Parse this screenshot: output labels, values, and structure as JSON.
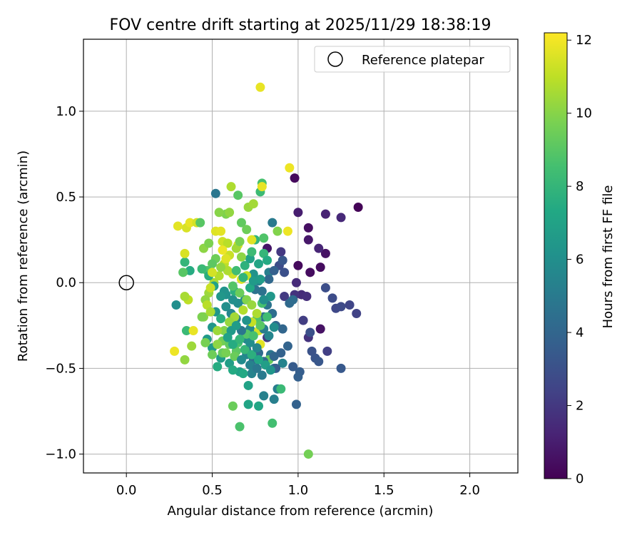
{
  "chart_data": {
    "type": "scatter",
    "title": "FOV centre drift starting at 2025/11/29 18:38:19",
    "xlabel": "Angular distance from reference (arcmin)",
    "ylabel": "Rotation from reference (arcmin)",
    "xlim": [
      -0.25,
      2.28
    ],
    "ylim": [
      -1.11,
      1.42
    ],
    "xticks": [
      0.0,
      0.5,
      1.0,
      1.5,
      2.0
    ],
    "xtick_labels": [
      "0.0",
      "0.5",
      "1.0",
      "1.5",
      "2.0"
    ],
    "yticks": [
      -1.0,
      -0.5,
      0.0,
      0.5,
      1.0
    ],
    "ytick_labels": [
      "−1.0",
      "−0.5",
      "0.0",
      "0.5",
      "1.0"
    ],
    "grid": true,
    "legend": {
      "position": "top-right",
      "entries": [
        "Reference platepar"
      ]
    },
    "reference_point": {
      "x": 0.0,
      "y": 0.0,
      "label": "Reference platepar"
    },
    "colorbar": {
      "label": "Hours from first FF file",
      "range": [
        0,
        12.2
      ],
      "ticks": [
        0,
        2,
        4,
        6,
        8,
        10,
        12
      ],
      "tick_labels": [
        "0",
        "2",
        "4",
        "6",
        "8",
        "10",
        "12"
      ],
      "colormap": "viridis"
    },
    "points": [
      [
        1.35,
        0.44,
        0.1
      ],
      [
        0.98,
        0.61,
        0.3
      ],
      [
        1.0,
        0.1,
        0.3
      ],
      [
        1.13,
        0.09,
        0.4
      ],
      [
        1.07,
        0.06,
        0.4
      ],
      [
        1.06,
        0.32,
        0.5
      ],
      [
        1.16,
        0.17,
        0.6
      ],
      [
        1.13,
        -0.27,
        0.6
      ],
      [
        0.82,
        0.2,
        0.7
      ],
      [
        1.06,
        0.25,
        0.8
      ],
      [
        1.0,
        0.41,
        1.0
      ],
      [
        1.16,
        0.4,
        1.2
      ],
      [
        1.25,
        0.38,
        1.4
      ],
      [
        1.12,
        0.2,
        1.3
      ],
      [
        0.99,
        0.0,
        1.5
      ],
      [
        1.02,
        -0.07,
        1.5
      ],
      [
        1.05,
        -0.08,
        1.6
      ],
      [
        1.06,
        -0.32,
        1.8
      ],
      [
        0.98,
        -0.07,
        1.8
      ],
      [
        0.9,
        0.18,
        2.0
      ],
      [
        0.92,
        -0.08,
        2.1
      ],
      [
        1.03,
        -0.22,
        2.2
      ],
      [
        1.17,
        -0.4,
        2.3
      ],
      [
        1.34,
        -0.18,
        2.4
      ],
      [
        1.3,
        -0.13,
        2.5
      ],
      [
        1.22,
        -0.15,
        2.6
      ],
      [
        1.25,
        -0.14,
        2.7
      ],
      [
        1.2,
        -0.09,
        2.8
      ],
      [
        1.16,
        -0.03,
        2.9
      ],
      [
        1.07,
        -0.29,
        3.0
      ],
      [
        1.08,
        -0.4,
        3.1
      ],
      [
        1.1,
        -0.44,
        3.2
      ],
      [
        1.12,
        -0.46,
        3.3
      ],
      [
        1.25,
        -0.5,
        3.4
      ],
      [
        0.97,
        -0.49,
        3.5
      ],
      [
        1.01,
        -0.52,
        3.6
      ],
      [
        1.0,
        -0.55,
        3.7
      ],
      [
        0.99,
        -0.71,
        3.8
      ],
      [
        0.94,
        -0.37,
        3.9
      ],
      [
        0.91,
        -0.27,
        4.0
      ],
      [
        0.87,
        -0.25,
        4.1
      ],
      [
        0.95,
        -0.12,
        4.2
      ],
      [
        0.97,
        -0.1,
        4.3
      ],
      [
        0.85,
        -0.18,
        4.4
      ],
      [
        0.8,
        -0.2,
        4.5
      ],
      [
        0.75,
        -0.04,
        4.6
      ],
      [
        0.82,
        -0.13,
        4.7
      ],
      [
        0.84,
        -0.42,
        4.8
      ],
      [
        0.86,
        -0.5,
        4.9
      ],
      [
        0.79,
        -0.54,
        5.0
      ],
      [
        0.88,
        -0.62,
        5.1
      ],
      [
        0.86,
        -0.68,
        5.2
      ],
      [
        0.8,
        -0.66,
        5.3
      ],
      [
        0.73,
        -0.53,
        5.4
      ],
      [
        0.7,
        -0.42,
        5.5
      ],
      [
        0.7,
        -0.33,
        5.6
      ],
      [
        0.72,
        -0.27,
        5.7
      ],
      [
        0.69,
        -0.1,
        5.8
      ],
      [
        0.65,
        -0.12,
        5.9
      ],
      [
        0.62,
        -0.1,
        6.0
      ],
      [
        0.58,
        -0.07,
        6.1
      ],
      [
        0.57,
        -0.05,
        6.2
      ],
      [
        0.52,
        -0.17,
        6.3
      ],
      [
        0.5,
        -0.26,
        6.4
      ],
      [
        0.47,
        -0.33,
        6.5
      ],
      [
        0.5,
        -0.38,
        6.6
      ],
      [
        0.55,
        -0.44,
        6.7
      ],
      [
        0.6,
        -0.47,
        6.8
      ],
      [
        0.66,
        -0.52,
        6.9
      ],
      [
        0.71,
        -0.6,
        7.0
      ],
      [
        0.71,
        -0.71,
        7.1
      ],
      [
        0.77,
        -0.72,
        7.2
      ],
      [
        0.68,
        -0.53,
        7.3
      ],
      [
        0.62,
        -0.51,
        7.4
      ],
      [
        0.53,
        -0.49,
        7.5
      ],
      [
        0.55,
        -0.21,
        7.6
      ],
      [
        0.63,
        -0.05,
        7.7
      ],
      [
        0.69,
        0.1,
        7.8
      ],
      [
        0.75,
        0.25,
        7.9
      ],
      [
        0.8,
        0.17,
        8.0
      ],
      [
        0.85,
        0.35,
        5.0
      ],
      [
        0.52,
        0.52,
        4.8
      ],
      [
        0.74,
        0.05,
        6.2
      ],
      [
        0.72,
        0.14,
        7.0
      ],
      [
        0.77,
        0.01,
        5.5
      ],
      [
        0.83,
        0.06,
        5.2
      ],
      [
        0.91,
        -0.47,
        5.4
      ],
      [
        0.82,
        -0.32,
        2.0
      ],
      [
        0.77,
        -0.41,
        4.2
      ],
      [
        0.89,
        0.1,
        2.8
      ],
      [
        0.78,
        0.53,
        8.3
      ],
      [
        0.79,
        0.58,
        8.6
      ],
      [
        0.65,
        0.51,
        9.0
      ],
      [
        0.67,
        0.35,
        9.2
      ],
      [
        0.7,
        0.31,
        9.5
      ],
      [
        0.58,
        0.4,
        9.8
      ],
      [
        0.54,
        0.41,
        10.0
      ],
      [
        0.6,
        0.41,
        10.2
      ],
      [
        0.71,
        0.44,
        10.3
      ],
      [
        0.74,
        0.46,
        10.5
      ],
      [
        0.61,
        0.56,
        10.7
      ],
      [
        0.79,
        0.56,
        11.8
      ],
      [
        0.95,
        0.67,
        11.9
      ],
      [
        0.78,
        1.14,
        11.8
      ],
      [
        0.94,
        0.3,
        11.9
      ],
      [
        0.88,
        0.3,
        9.9
      ],
      [
        0.73,
        0.25,
        11.6
      ],
      [
        0.65,
        0.22,
        11.5
      ],
      [
        0.6,
        0.16,
        11.2
      ],
      [
        0.57,
        0.11,
        11.0
      ],
      [
        0.54,
        0.04,
        10.8
      ],
      [
        0.51,
        0.0,
        10.6
      ],
      [
        0.48,
        -0.06,
        10.4
      ],
      [
        0.46,
        -0.1,
        10.2
      ],
      [
        0.45,
        -0.2,
        10.0
      ],
      [
        0.44,
        -0.2,
        9.8
      ],
      [
        0.46,
        -0.35,
        9.7
      ],
      [
        0.5,
        -0.42,
        9.5
      ],
      [
        0.56,
        -0.41,
        9.3
      ],
      [
        0.64,
        -0.4,
        9.1
      ],
      [
        0.7,
        -0.3,
        8.9
      ],
      [
        0.76,
        -0.21,
        8.8
      ],
      [
        0.79,
        -0.12,
        8.6
      ],
      [
        0.82,
        -0.2,
        8.4
      ],
      [
        0.9,
        -0.62,
        8.2
      ],
      [
        0.85,
        -0.82,
        8.5
      ],
      [
        0.66,
        -0.84,
        8.7
      ],
      [
        0.62,
        -0.72,
        9.4
      ],
      [
        1.06,
        -1.0,
        9.6
      ],
      [
        0.83,
        -0.45,
        9.3
      ],
      [
        0.35,
        -0.28,
        8.2
      ],
      [
        0.37,
        0.07,
        7.5
      ],
      [
        0.33,
        0.06,
        9.0
      ],
      [
        0.34,
        0.12,
        8.0
      ],
      [
        0.34,
        0.17,
        11.5
      ],
      [
        0.35,
        0.32,
        11.5
      ],
      [
        0.37,
        0.35,
        11.8
      ],
      [
        0.41,
        0.35,
        11.4
      ],
      [
        0.3,
        0.33,
        11.7
      ],
      [
        0.39,
        -0.28,
        11.8
      ],
      [
        0.36,
        -0.1,
        11.0
      ],
      [
        0.34,
        -0.08,
        10.6
      ],
      [
        0.38,
        -0.37,
        10.4
      ],
      [
        0.34,
        -0.45,
        10.2
      ],
      [
        0.28,
        -0.4,
        11.9
      ],
      [
        0.29,
        -0.13,
        6.0
      ],
      [
        0.43,
        0.35,
        9.0
      ],
      [
        0.45,
        0.2,
        10.1
      ],
      [
        0.48,
        0.23,
        9.8
      ],
      [
        0.52,
        0.3,
        11.6
      ],
      [
        0.55,
        0.3,
        11.7
      ],
      [
        0.56,
        0.24,
        11.3
      ],
      [
        0.59,
        0.23,
        10.9
      ],
      [
        0.64,
        0.2,
        10.5
      ],
      [
        0.67,
        0.15,
        10.1
      ],
      [
        0.7,
        0.04,
        11.1
      ],
      [
        0.67,
        0.02,
        11.6
      ],
      [
        0.62,
        0.05,
        11.3
      ],
      [
        0.59,
        0.07,
        10.7
      ],
      [
        0.55,
        0.09,
        10.2
      ],
      [
        0.52,
        0.14,
        9.5
      ],
      [
        0.5,
        0.11,
        9.1
      ],
      [
        0.47,
        0.07,
        8.8
      ],
      [
        0.44,
        0.08,
        8.2
      ],
      [
        0.48,
        0.04,
        7.6
      ],
      [
        0.51,
        -0.02,
        7.0
      ],
      [
        0.55,
        -0.08,
        6.4
      ],
      [
        0.58,
        -0.14,
        6.0
      ],
      [
        0.61,
        -0.18,
        5.6
      ],
      [
        0.64,
        -0.21,
        5.2
      ],
      [
        0.67,
        -0.28,
        4.8
      ],
      [
        0.7,
        -0.39,
        4.6
      ],
      [
        0.74,
        -0.45,
        4.4
      ],
      [
        0.8,
        -0.46,
        4.2
      ],
      [
        0.86,
        -0.43,
        4.0
      ],
      [
        0.9,
        -0.41,
        3.8
      ],
      [
        0.87,
        -0.5,
        3.6
      ],
      [
        0.78,
        -0.36,
        11.7
      ],
      [
        0.77,
        -0.28,
        11.4
      ],
      [
        0.73,
        -0.23,
        11.1
      ],
      [
        0.68,
        -0.16,
        10.8
      ],
      [
        0.63,
        -0.2,
        10.5
      ],
      [
        0.6,
        -0.23,
        10.3
      ],
      [
        0.57,
        -0.28,
        9.9
      ],
      [
        0.56,
        -0.34,
        9.6
      ],
      [
        0.6,
        -0.36,
        9.2
      ],
      [
        0.65,
        -0.35,
        8.6
      ],
      [
        0.69,
        -0.39,
        8.1
      ],
      [
        0.73,
        -0.42,
        7.7
      ],
      [
        0.77,
        -0.45,
        7.2
      ],
      [
        0.81,
        -0.48,
        6.8
      ],
      [
        0.84,
        -0.51,
        6.3
      ],
      [
        0.86,
        -0.26,
        5.9
      ],
      [
        0.83,
        -0.31,
        5.5
      ],
      [
        0.8,
        -0.27,
        5.1
      ],
      [
        0.79,
        -0.05,
        4.6
      ],
      [
        0.83,
        0.02,
        4.1
      ],
      [
        0.86,
        0.07,
        3.7
      ],
      [
        0.91,
        0.13,
        3.3
      ],
      [
        0.92,
        0.06,
        3.0
      ],
      [
        0.84,
        -0.08,
        6.4
      ],
      [
        0.78,
        0.02,
        6.7
      ],
      [
        0.72,
        -0.03,
        7.3
      ],
      [
        0.68,
        0.03,
        7.9
      ],
      [
        0.64,
        0.07,
        8.4
      ],
      [
        0.62,
        -0.02,
        8.9
      ],
      [
        0.66,
        -0.06,
        9.4
      ],
      [
        0.7,
        -0.1,
        9.9
      ],
      [
        0.73,
        -0.13,
        10.3
      ],
      [
        0.76,
        -0.18,
        10.7
      ],
      [
        0.56,
        0.19,
        11.9
      ],
      [
        0.58,
        0.14,
        11.6
      ],
      [
        0.5,
        0.06,
        11.4
      ],
      [
        0.49,
        -0.03,
        11.2
      ],
      [
        0.47,
        -0.13,
        10.9
      ],
      [
        0.49,
        -0.17,
        10.6
      ],
      [
        0.53,
        -0.28,
        10.4
      ],
      [
        0.53,
        -0.36,
        10.1
      ],
      [
        0.58,
        -0.41,
        9.7
      ],
      [
        0.63,
        -0.43,
        9.4
      ],
      [
        0.67,
        -0.45,
        5.8
      ],
      [
        0.72,
        -0.48,
        5.3
      ],
      [
        0.76,
        -0.5,
        4.9
      ],
      [
        0.8,
        -0.1,
        6.0
      ],
      [
        0.74,
        0.01,
        6.6
      ],
      [
        0.77,
        0.11,
        7.1
      ],
      [
        0.73,
        0.18,
        8.3
      ],
      [
        0.82,
        0.13,
        7.4
      ],
      [
        0.8,
        0.26,
        8.8
      ],
      [
        0.66,
        0.24,
        9.7
      ],
      [
        0.7,
        -0.22,
        6.2
      ],
      [
        0.61,
        -0.28,
        6.6
      ],
      [
        0.59,
        -0.32,
        7.0
      ],
      [
        0.62,
        -0.36,
        7.5
      ],
      [
        0.66,
        -0.33,
        8.0
      ],
      [
        0.72,
        -0.35,
        5.9
      ],
      [
        0.76,
        -0.38,
        5.5
      ],
      [
        0.78,
        -0.25,
        9.0
      ],
      [
        0.74,
        -0.31,
        8.6
      ],
      [
        0.64,
        -0.25,
        6.7
      ]
    ]
  }
}
